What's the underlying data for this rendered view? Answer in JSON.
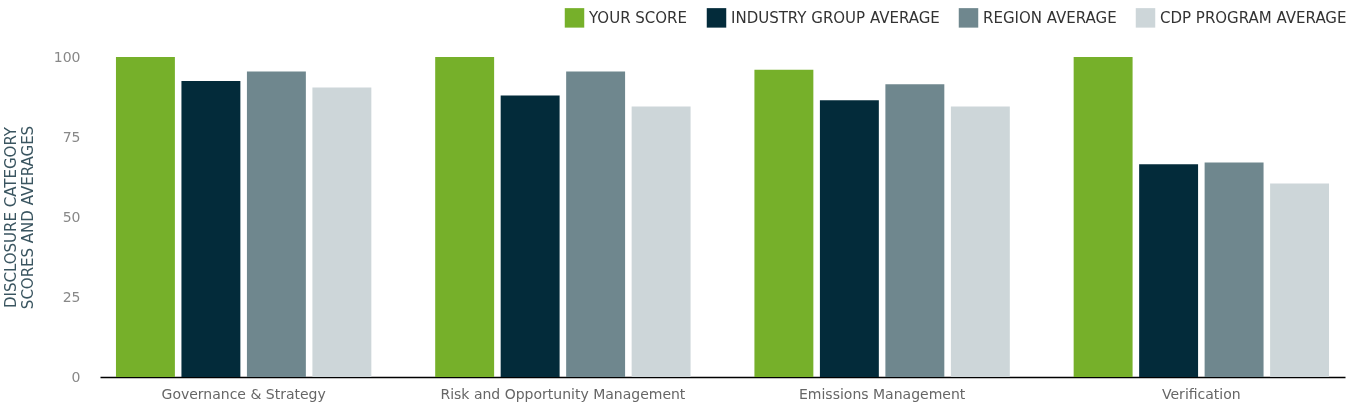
{
  "chart_data": {
    "type": "bar",
    "ylabel": "DISCLOSURE CATEGORY\nSCORES AND AVERAGES",
    "categories": [
      "Governance & Strategy",
      "Risk and Opportunity Management",
      "Emissions Management",
      "Verification"
    ],
    "series": [
      {
        "name": "YOUR SCORE",
        "color": "#76b02a",
        "values": [
          100,
          100,
          96,
          100
        ]
      },
      {
        "name": "INDUSTRY GROUP AVERAGE",
        "color": "#032b3a",
        "values": [
          92.5,
          88,
          86.5,
          66.5
        ]
      },
      {
        "name": "REGION AVERAGE",
        "color": "#6f878e",
        "values": [
          95.5,
          95.5,
          91.5,
          67
        ]
      },
      {
        "name": "CDP PROGRAM AVERAGE",
        "color": "#cdd6d9",
        "values": [
          90.5,
          84.5,
          84.5,
          60.5
        ]
      }
    ],
    "ylim": [
      0,
      100
    ],
    "yticks": [
      0,
      25,
      50,
      75,
      100
    ],
    "grid": false,
    "legend": "top right"
  }
}
